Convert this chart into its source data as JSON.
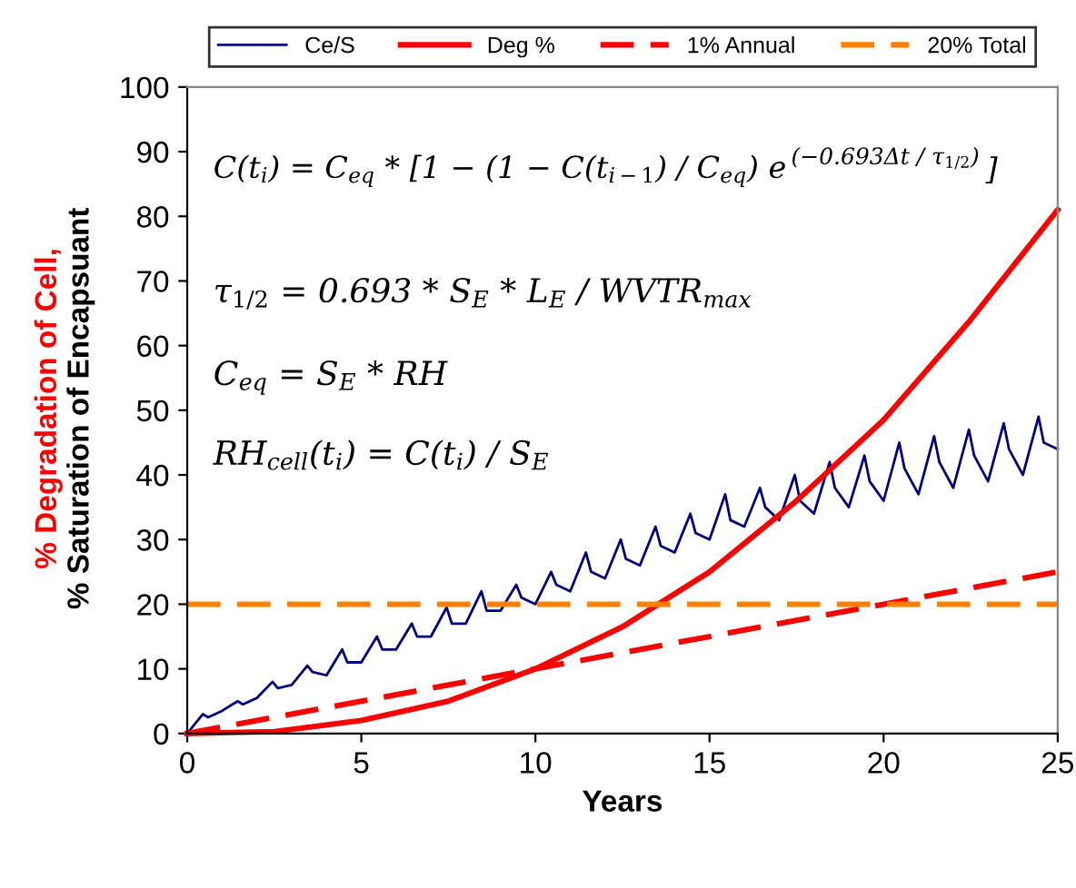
{
  "chart_data": {
    "type": "line",
    "xlabel": "Years",
    "ylabel": "% Degradation of Cell,\n% Saturation of Encapsuant",
    "xlim": [
      0,
      25
    ],
    "xticks": [
      0,
      5,
      10,
      15,
      20,
      25
    ],
    "ylim": [
      0,
      100
    ],
    "yticks": [
      0,
      10,
      20,
      30,
      40,
      50,
      60,
      70,
      80,
      90,
      100
    ],
    "grid": false,
    "legend": "top",
    "marker": "none",
    "series": [
      {
        "name": "Ce/S",
        "color": "#000080",
        "line_style": "solid",
        "x": [
          0,
          0.45,
          0.6,
          1,
          1.45,
          1.6,
          2,
          2.45,
          2.6,
          3,
          3.45,
          3.6,
          4,
          4.45,
          4.6,
          5,
          5.45,
          5.6,
          6,
          6.45,
          6.6,
          7,
          7.45,
          7.6,
          8,
          8.45,
          8.6,
          9,
          9.45,
          9.6,
          10,
          10.45,
          10.6,
          11,
          11.45,
          11.6,
          12,
          12.45,
          12.6,
          13,
          13.45,
          13.6,
          14,
          14.45,
          14.6,
          15,
          15.45,
          15.6,
          16,
          16.45,
          16.6,
          17,
          17.45,
          17.6,
          18,
          18.45,
          18.6,
          19,
          19.45,
          19.6,
          20,
          20.45,
          20.6,
          21,
          21.45,
          21.6,
          22,
          22.45,
          22.6,
          23,
          23.45,
          23.6,
          24,
          24.45,
          24.6,
          25
        ],
        "values": [
          0,
          3,
          2.5,
          3.5,
          5,
          4.5,
          5.5,
          8,
          7,
          7.5,
          10.5,
          9.5,
          9,
          13,
          11,
          11,
          15,
          13,
          13,
          17,
          15,
          15,
          19.5,
          17,
          17,
          22,
          19,
          19,
          23,
          21,
          20,
          25,
          23,
          22,
          28,
          25,
          24,
          30,
          27,
          26,
          32,
          29,
          28,
          34,
          31,
          30,
          37,
          33,
          32,
          38,
          35,
          33,
          40,
          36,
          34,
          42,
          38,
          35,
          43,
          39,
          36,
          45,
          41,
          37,
          46,
          42,
          38,
          47,
          43,
          39,
          48,
          44,
          40,
          49,
          45,
          44
        ]
      },
      {
        "name": "Deg %",
        "color": "#ff0000",
        "line_style": "solid",
        "x": [
          0,
          2.5,
          5,
          7.5,
          10,
          12.5,
          15,
          17.5,
          20,
          22.5,
          25
        ],
        "values": [
          0,
          0.3,
          2,
          5,
          10,
          16.5,
          25,
          36,
          48.5,
          64,
          81
        ]
      },
      {
        "name": "1% Annual",
        "color": "#ff0000",
        "line_style": "dashed",
        "x": [
          0,
          25
        ],
        "values": [
          0,
          25
        ]
      },
      {
        "name": "20% Total",
        "color": "#ff8000",
        "line_style": "dashed",
        "x": [
          0,
          25
        ],
        "values": [
          20,
          20
        ]
      }
    ],
    "annotations": [
      "C(t$_{i}$) = C$_{eq}$ * [1 − (1 − C(t$_{i−1}$) / C$_{eq}$) e",
      "(−0.693Δt / τ$_{1/2}$)",
      "]",
      "τ$_{1/2}$ = 0.693 * S$_{E}$ * L$_{E}$ / WVTR$_{max}$",
      "C$_{eq}$ = S$_{E}$ * RH",
      "RH$_{cell}$(t$_{i}$) = C(t$_{i}$) / S$_{E}$"
    ]
  }
}
